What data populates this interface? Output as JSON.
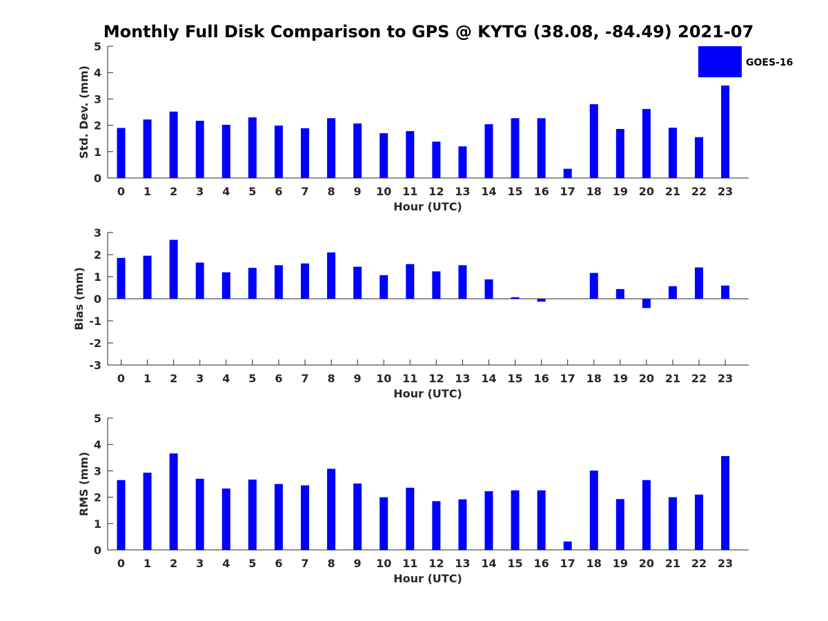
{
  "figure_title": "Monthly Full Disk Comparison to GPS @ KYTG (38.08, -84.49) 2021-07",
  "legend": {
    "label": "GOES-16",
    "color": "#0000ff"
  },
  "chart_data": [
    {
      "type": "bar",
      "title": "Monthly Full Disk Comparison to GPS @ KYTG (38.08, -84.49) 2021-07",
      "xlabel": "Hour (UTC)",
      "ylabel": "Std. Dev. (mm)",
      "ylim": [
        0,
        5
      ],
      "yticks": [
        "0",
        "1",
        "2",
        "3",
        "4",
        "5"
      ],
      "categories": [
        "0",
        "1",
        "2",
        "3",
        "4",
        "5",
        "6",
        "7",
        "8",
        "9",
        "10",
        "11",
        "12",
        "13",
        "14",
        "15",
        "16",
        "17",
        "18",
        "19",
        "20",
        "21",
        "22",
        "23"
      ],
      "series": [
        {
          "name": "GOES-16",
          "color": "#0000ff",
          "values": [
            1.9,
            2.22,
            2.52,
            2.17,
            2.02,
            2.3,
            1.99,
            1.89,
            2.27,
            2.07,
            1.7,
            1.78,
            1.38,
            1.2,
            2.04,
            2.27,
            2.27,
            0.35,
            2.8,
            1.86,
            2.62,
            1.91,
            1.55,
            3.51
          ]
        }
      ]
    },
    {
      "type": "bar",
      "xlabel": "Hour (UTC)",
      "ylabel": "Bias (mm)",
      "ylim": [
        -3,
        3
      ],
      "yticks": [
        "-3",
        "-2",
        "-1",
        "0",
        "1",
        "2",
        "3"
      ],
      "categories": [
        "0",
        "1",
        "2",
        "3",
        "4",
        "5",
        "6",
        "7",
        "8",
        "9",
        "10",
        "11",
        "12",
        "13",
        "14",
        "15",
        "16",
        "17",
        "18",
        "19",
        "20",
        "21",
        "22",
        "23"
      ],
      "series": [
        {
          "name": "GOES-16",
          "color": "#0000ff",
          "values": [
            1.85,
            1.95,
            2.67,
            1.64,
            1.2,
            1.4,
            1.52,
            1.6,
            2.1,
            1.45,
            1.07,
            1.57,
            1.24,
            1.52,
            0.88,
            0.07,
            -0.13,
            0.0,
            1.17,
            0.44,
            -0.42,
            0.57,
            1.42,
            0.6
          ]
        }
      ]
    },
    {
      "type": "bar",
      "xlabel": "Hour (UTC)",
      "ylabel": "RMS (mm)",
      "ylim": [
        0,
        5
      ],
      "yticks": [
        "0",
        "1",
        "2",
        "3",
        "4",
        "5"
      ],
      "categories": [
        "0",
        "1",
        "2",
        "3",
        "4",
        "5",
        "6",
        "7",
        "8",
        "9",
        "10",
        "11",
        "12",
        "13",
        "14",
        "15",
        "16",
        "17",
        "18",
        "19",
        "20",
        "21",
        "22",
        "23"
      ],
      "series": [
        {
          "name": "GOES-16",
          "color": "#0000ff",
          "values": [
            2.65,
            2.93,
            3.66,
            2.7,
            2.33,
            2.67,
            2.5,
            2.45,
            3.08,
            2.52,
            2.0,
            2.36,
            1.85,
            1.92,
            2.23,
            2.26,
            2.26,
            0.32,
            3.01,
            1.93,
            2.65,
            2.0,
            2.1,
            3.56
          ]
        }
      ]
    }
  ]
}
